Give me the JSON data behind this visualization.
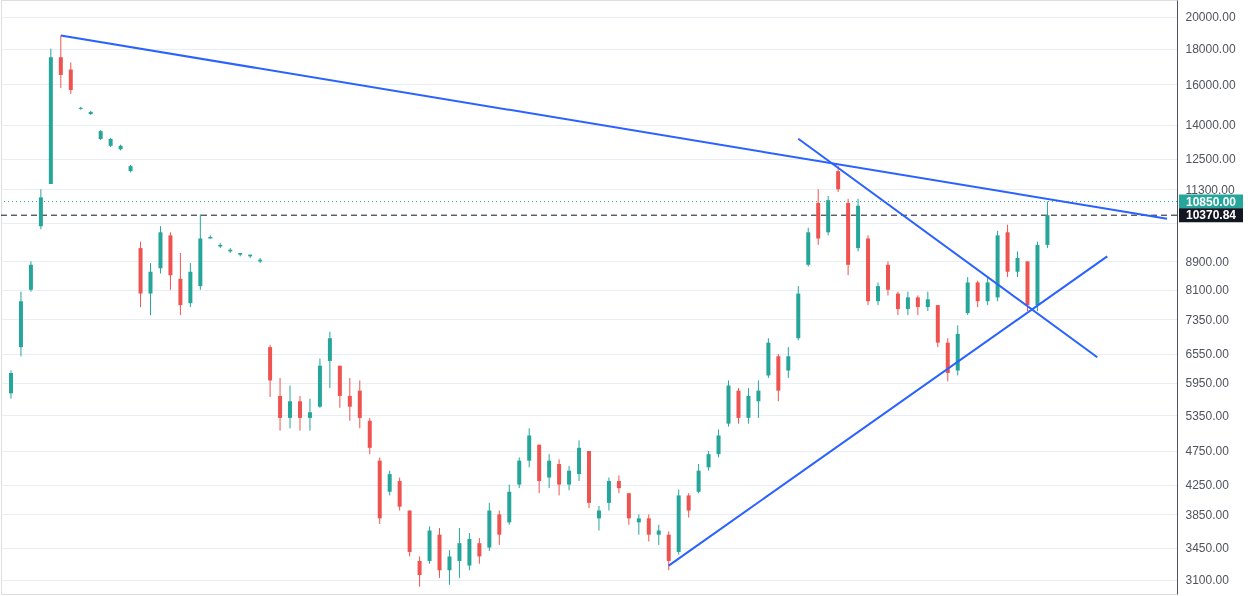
{
  "chart_data": {
    "type": "candlestick",
    "categories": [
      null,
      null,
      null,
      null,
      null,
      null,
      null,
      null,
      null,
      null,
      null,
      null,
      null,
      null,
      null,
      null,
      null,
      null,
      null,
      null,
      null,
      null,
      null,
      null,
      null,
      null,
      null,
      null,
      null,
      null,
      null,
      null,
      null,
      null,
      null,
      null,
      null,
      null,
      null,
      null,
      null,
      null,
      null,
      null,
      null,
      null,
      null,
      null,
      null,
      null,
      null,
      null,
      null,
      null,
      null,
      null,
      null,
      null,
      null,
      null,
      null,
      null,
      null,
      null,
      null,
      null,
      null,
      null,
      null,
      null,
      null,
      null,
      null,
      null,
      null,
      null,
      null,
      null,
      null,
      null,
      null,
      null,
      null,
      null,
      null,
      null,
      null,
      null,
      null,
      null,
      null,
      null,
      null,
      null,
      null,
      null,
      null,
      null,
      null,
      null,
      null,
      null,
      null,
      null,
      null,
      null,
      null,
      null,
      null,
      null,
      null,
      null,
      null,
      null,
      null,
      null,
      null
    ],
    "ohlc": [
      [
        5750,
        6200,
        5650,
        6150
      ],
      [
        6700,
        8050,
        6500,
        7800
      ],
      [
        8100,
        8900,
        8050,
        8800
      ],
      [
        10000,
        11300,
        9900,
        11000
      ],
      [
        11500,
        18000,
        11500,
        17500
      ],
      [
        17500,
        18800,
        15800,
        16500
      ],
      [
        16800,
        17200,
        15500,
        15700
      ],
      [
        14750,
        14850,
        14700,
        14800
      ],
      [
        14500,
        14650,
        14450,
        14600
      ],
      [
        13350,
        13750,
        13300,
        13700
      ],
      [
        13050,
        13400,
        13000,
        13350
      ],
      [
        12900,
        13100,
        12850,
        13050
      ],
      [
        12000,
        12250,
        11950,
        12200
      ],
      [
        9300,
        9500,
        7650,
        8000
      ],
      [
        8000,
        8850,
        7450,
        8600
      ],
      [
        8700,
        10000,
        8550,
        9800
      ],
      [
        9700,
        9800,
        8100,
        8500
      ],
      [
        8400,
        9150,
        7450,
        7700
      ],
      [
        7750,
        8850,
        7650,
        8600
      ],
      [
        8200,
        10400,
        8100,
        9600
      ],
      [
        9600,
        9700,
        9600,
        9650
      ],
      [
        9350,
        9450,
        9300,
        9400
      ],
      [
        9200,
        9300,
        9150,
        9250
      ],
      [
        9100,
        9150,
        9050,
        9150
      ],
      [
        9050,
        9100,
        9000,
        9100
      ],
      [
        8900,
        9000,
        8850,
        8950
      ],
      [
        6700,
        6750,
        5680,
        6000
      ],
      [
        5700,
        6050,
        5080,
        5300
      ],
      [
        5300,
        5900,
        5120,
        5600
      ],
      [
        5600,
        5700,
        5080,
        5300
      ],
      [
        5300,
        5650,
        5080,
        5400
      ],
      [
        5500,
        6450,
        5480,
        6300
      ],
      [
        6400,
        7050,
        5850,
        6900
      ],
      [
        6300,
        6300,
        5480,
        5700
      ],
      [
        5700,
        6050,
        5250,
        5500
      ],
      [
        5800,
        6000,
        5120,
        5300
      ],
      [
        5250,
        5300,
        4700,
        4800
      ],
      [
        4600,
        4650,
        3730,
        3800
      ],
      [
        4150,
        4450,
        4100,
        4400
      ],
      [
        4300,
        4350,
        3900,
        3950
      ],
      [
        3900,
        3900,
        3350,
        3400
      ],
      [
        3300,
        3350,
        3030,
        3150
      ],
      [
        3300,
        3700,
        3270,
        3650
      ],
      [
        3600,
        3680,
        3120,
        3200
      ],
      [
        3200,
        3420,
        3050,
        3350
      ],
      [
        3300,
        3680,
        3120,
        3500
      ],
      [
        3250,
        3620,
        3200,
        3550
      ],
      [
        3500,
        3560,
        3270,
        3350
      ],
      [
        3450,
        4000,
        3410,
        3900
      ],
      [
        3850,
        3900,
        3480,
        3600
      ],
      [
        3750,
        4250,
        3720,
        4150
      ],
      [
        4250,
        4650,
        4200,
        4600
      ],
      [
        4600,
        5120,
        4500,
        5000
      ],
      [
        4850,
        4850,
        4130,
        4300
      ],
      [
        4350,
        4700,
        4200,
        4600
      ],
      [
        4550,
        4620,
        4100,
        4250
      ],
      [
        4250,
        4520,
        4170,
        4450
      ],
      [
        4400,
        4920,
        4300,
        4800
      ],
      [
        4750,
        4750,
        3930,
        4000
      ],
      [
        3800,
        3960,
        3650,
        3900
      ],
      [
        4000,
        4350,
        3900,
        4300
      ],
      [
        4300,
        4380,
        4130,
        4200
      ],
      [
        4130,
        4130,
        3720,
        3800
      ],
      [
        3750,
        3850,
        3600,
        3800
      ],
      [
        3800,
        3850,
        3520,
        3600
      ],
      [
        3600,
        3720,
        3480,
        3650
      ],
      [
        3600,
        3640,
        3200,
        3300
      ],
      [
        3400,
        4180,
        3370,
        4100
      ],
      [
        4100,
        4130,
        3810,
        3900
      ],
      [
        4150,
        4550,
        4130,
        4450
      ],
      [
        4500,
        4750,
        4450,
        4700
      ],
      [
        4700,
        5100,
        4650,
        5000
      ],
      [
        5200,
        6000,
        5150,
        5900
      ],
      [
        5800,
        5850,
        5200,
        5300
      ],
      [
        5300,
        5850,
        5200,
        5700
      ],
      [
        5600,
        6000,
        5300,
        5800
      ],
      [
        6100,
        6900,
        6050,
        6800
      ],
      [
        6500,
        6550,
        5600,
        5800
      ],
      [
        6200,
        6700,
        6050,
        6500
      ],
      [
        6900,
        8200,
        6850,
        8000
      ],
      [
        8800,
        9950,
        8750,
        9800
      ],
      [
        10800,
        11300,
        9400,
        9600
      ],
      [
        9800,
        11050,
        9700,
        10900
      ],
      [
        12000,
        12200,
        11200,
        11300
      ],
      [
        10800,
        10950,
        8500,
        8800
      ],
      [
        9300,
        10950,
        9200,
        10700
      ],
      [
        9600,
        9700,
        7700,
        7800
      ],
      [
        7800,
        8300,
        7700,
        8200
      ],
      [
        8800,
        8900,
        7950,
        8100
      ],
      [
        8000,
        8050,
        7450,
        7600
      ],
      [
        7600,
        8050,
        7450,
        7900
      ],
      [
        7900,
        7950,
        7450,
        7650
      ],
      [
        7650,
        8050,
        7550,
        7850
      ],
      [
        7700,
        7700,
        6700,
        6800
      ],
      [
        6800,
        6900,
        5980,
        6150
      ],
      [
        6200,
        7200,
        6100,
        7000
      ],
      [
        7500,
        8450,
        7450,
        8300
      ],
      [
        8300,
        8350,
        7650,
        7800
      ],
      [
        7800,
        8450,
        7700,
        8300
      ],
      [
        7900,
        9850,
        7800,
        9700
      ],
      [
        9800,
        10050,
        8450,
        8600
      ],
      [
        8600,
        9200,
        8450,
        9000
      ],
      [
        8900,
        8900,
        7550,
        7700
      ],
      [
        7700,
        9500,
        7550,
        9400
      ],
      [
        9400,
        10850,
        9300,
        10370.84
      ],
      null,
      null,
      null,
      null,
      null,
      null,
      null,
      null,
      null,
      null,
      null,
      null
    ],
    "colors": [
      "#26a69a",
      "#26a69a",
      "#26a69a",
      "#26a69a",
      "#26a69a",
      "#ef5350",
      "#ef5350",
      "#26a69a",
      "#26a69a",
      "#26a69a",
      "#26a69a",
      "#26a69a",
      "#26a69a",
      "#ef5350",
      "#26a69a",
      "#26a69a",
      "#ef5350",
      "#ef5350",
      "#26a69a",
      "#26a69a",
      "#26a69a",
      "#26a69a",
      "#26a69a",
      "#26a69a",
      "#26a69a",
      "#26a69a",
      "#ef5350",
      "#ef5350",
      "#26a69a",
      "#ef5350",
      "#26a69a",
      "#26a69a",
      "#26a69a",
      "#ef5350",
      "#ef5350",
      "#ef5350",
      "#ef5350",
      "#ef5350",
      "#26a69a",
      "#ef5350",
      "#ef5350",
      "#ef5350",
      "#26a69a",
      "#ef5350",
      "#26a69a",
      "#26a69a",
      "#26a69a",
      "#ef5350",
      "#26a69a",
      "#ef5350",
      "#26a69a",
      "#26a69a",
      "#26a69a",
      "#ef5350",
      "#26a69a",
      "#ef5350",
      "#26a69a",
      "#26a69a",
      "#ef5350",
      "#26a69a",
      "#26a69a",
      "#ef5350",
      "#ef5350",
      "#26a69a",
      "#ef5350",
      "#26a69a",
      "#ef5350",
      "#26a69a",
      "#ef5350",
      "#26a69a",
      "#26a69a",
      "#26a69a",
      "#26a69a",
      "#ef5350",
      "#26a69a",
      "#26a69a",
      "#26a69a",
      "#ef5350",
      "#26a69a",
      "#26a69a",
      "#26a69a",
      "#ef5350",
      "#26a69a",
      "#ef5350",
      "#ef5350",
      "#26a69a",
      "#ef5350",
      "#26a69a",
      "#ef5350",
      "#ef5350",
      "#26a69a",
      "#ef5350",
      "#26a69a",
      "#ef5350",
      "#ef5350",
      "#26a69a",
      "#26a69a",
      "#ef5350",
      "#26a69a",
      "#26a69a",
      "#ef5350",
      "#26a69a",
      "#ef5350",
      "#26a69a",
      "#26a69a",
      null,
      null,
      null,
      null,
      null,
      null,
      null,
      null,
      null,
      null,
      null,
      null
    ],
    "series": [
      {
        "type": "line",
        "color": "#2962ff",
        "values": [
          null,
          null,
          null,
          null,
          null,
          18800,
          null,
          null,
          null,
          null,
          null,
          null,
          null,
          null,
          null,
          null,
          null,
          null,
          null,
          null,
          null,
          null,
          null,
          null,
          null,
          null,
          null,
          null,
          null,
          null,
          null,
          null,
          null,
          null,
          null,
          null,
          null,
          null,
          null,
          null,
          null,
          null,
          null,
          null,
          null,
          null,
          null,
          null,
          null,
          null,
          null,
          null,
          null,
          null,
          null,
          null,
          null,
          null,
          null,
          null,
          null,
          null,
          null,
          null,
          null,
          null,
          null,
          null,
          null,
          null,
          null,
          null,
          null,
          null,
          null,
          null,
          null,
          null,
          null,
          null,
          null,
          null,
          null,
          null,
          null,
          null,
          null,
          null,
          null,
          null,
          null,
          null,
          null,
          null,
          null,
          null,
          null,
          null,
          null,
          null,
          null,
          null,
          null,
          null,
          null,
          null,
          null,
          null,
          null,
          null,
          null,
          null,
          null,
          null,
          null,
          null,
          10250
        ]
      },
      {
        "type": "line",
        "color": "#2962ff",
        "values": [
          null,
          null,
          null,
          null,
          null,
          null,
          null,
          null,
          null,
          null,
          null,
          null,
          null,
          null,
          null,
          null,
          null,
          null,
          null,
          null,
          null,
          null,
          null,
          null,
          null,
          null,
          null,
          null,
          null,
          null,
          null,
          null,
          null,
          null,
          null,
          null,
          null,
          null,
          null,
          null,
          null,
          null,
          null,
          null,
          null,
          null,
          null,
          null,
          null,
          null,
          null,
          null,
          null,
          null,
          null,
          null,
          null,
          null,
          null,
          null,
          null,
          null,
          null,
          null,
          null,
          null,
          null,
          null,
          null,
          null,
          null,
          null,
          null,
          null,
          null,
          null,
          null,
          null,
          null,
          13360,
          null,
          null,
          null,
          null,
          null,
          null,
          null,
          null,
          null,
          null,
          null,
          null,
          null,
          null,
          null,
          null,
          null,
          null,
          null,
          null,
          null,
          null,
          null,
          null,
          null,
          null,
          null,
          null,
          null,
          6480,
          null,
          null,
          null,
          null,
          null,
          null,
          null
        ]
      },
      {
        "type": "line",
        "color": "#2962ff",
        "values": [
          null,
          null,
          null,
          null,
          null,
          null,
          null,
          null,
          null,
          null,
          null,
          null,
          null,
          null,
          null,
          null,
          null,
          null,
          null,
          null,
          null,
          null,
          null,
          null,
          null,
          null,
          null,
          null,
          null,
          null,
          null,
          null,
          null,
          null,
          null,
          null,
          null,
          null,
          null,
          null,
          null,
          null,
          null,
          null,
          null,
          null,
          null,
          null,
          null,
          null,
          null,
          null,
          null,
          null,
          null,
          null,
          null,
          null,
          null,
          null,
          null,
          null,
          null,
          null,
          null,
          null,
          3250,
          null,
          null,
          null,
          null,
          null,
          null,
          null,
          null,
          null,
          null,
          null,
          null,
          null,
          null,
          null,
          null,
          null,
          null,
          null,
          null,
          null,
          null,
          null,
          null,
          null,
          null,
          null,
          null,
          null,
          null,
          null,
          null,
          null,
          null,
          null,
          null,
          null,
          null,
          null,
          null,
          null,
          null,
          null,
          9050,
          null,
          null,
          null,
          null,
          null,
          null
        ]
      }
    ],
    "ylim": [
      2958,
      21150
    ],
    "log": true,
    "yticks": [
      {
        "value": 3100,
        "label": "3100.00"
      },
      {
        "value": 3450,
        "label": "3450.00"
      },
      {
        "value": 3850,
        "label": "3850.00"
      },
      {
        "value": 4250,
        "label": "4250.00"
      },
      {
        "value": 4750,
        "label": "4750.00"
      },
      {
        "value": 5350,
        "label": "5350.00"
      },
      {
        "value": 5950,
        "label": "5950.00"
      },
      {
        "value": 6550,
        "label": "6550.00"
      },
      {
        "value": 7350,
        "label": "7350.00"
      },
      {
        "value": 8100,
        "label": "8100.00"
      },
      {
        "value": 8900,
        "label": "8900.00"
      },
      {
        "value": 10100,
        "label": null
      },
      {
        "value": 11300,
        "label": "11300.00"
      },
      {
        "value": 12500,
        "label": "12500.00"
      },
      {
        "value": 14000,
        "label": "14000.00"
      },
      {
        "value": 16000,
        "label": "16000.00"
      },
      {
        "value": 18000,
        "label": "18000.00"
      },
      {
        "value": 20000,
        "label": "20000.00"
      }
    ],
    "ref_lines": [
      {
        "axis": "y",
        "value": 10850,
        "label": "10850.00",
        "color": "#26a69a",
        "line_style": "dotted"
      },
      {
        "axis": "y",
        "value": 10370.84,
        "label": "10370.84",
        "color": "#131722",
        "line_style": "dashed"
      }
    ],
    "grid": "y",
    "tick_labels": "y"
  }
}
